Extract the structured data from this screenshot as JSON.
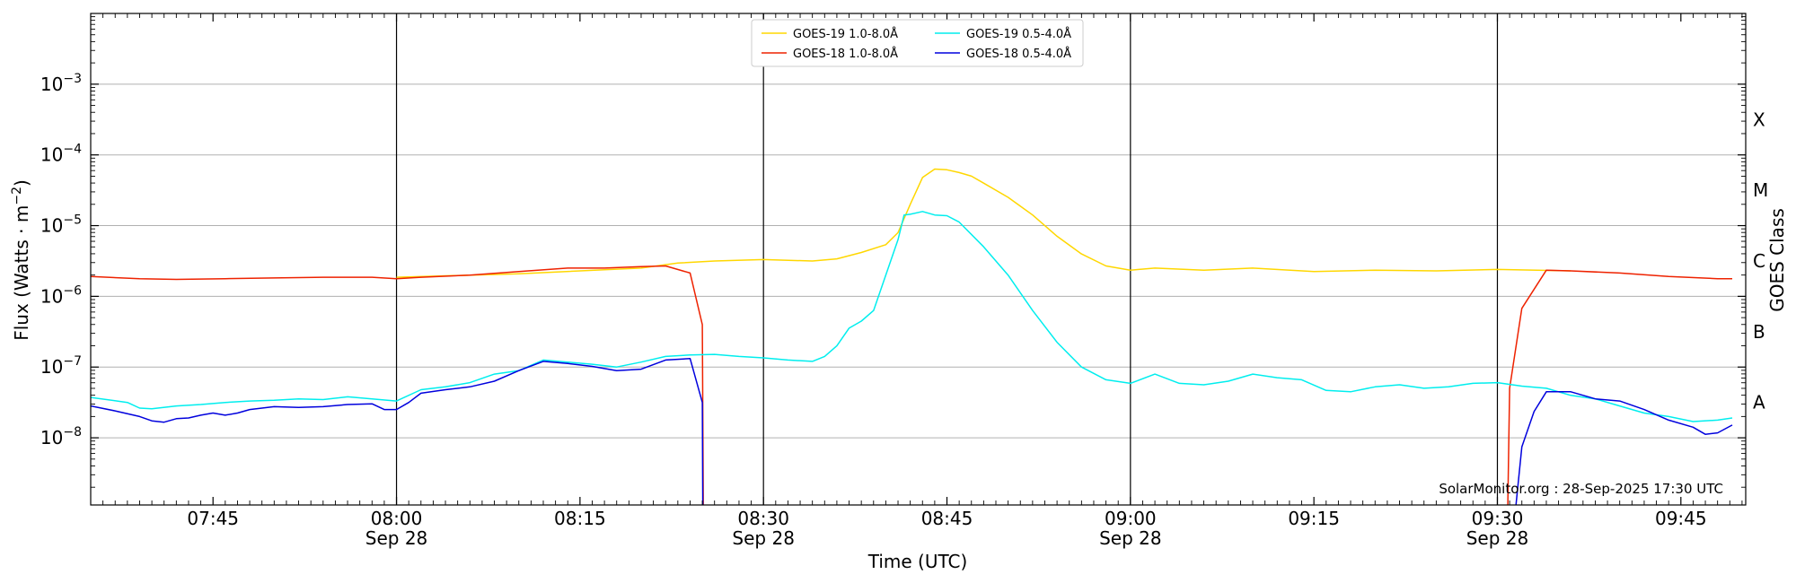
{
  "chart_data": {
    "type": "line",
    "xlabel": "Time (UTC)",
    "ylabel_main": "Flux (Watts · m",
    "ylabel_exp": "−2",
    "ylabel_close": ")",
    "y2label": "GOES Class",
    "credit": "SolarMonitor.org : 28-Sep-2025 17:30 UTC",
    "yscale": "log",
    "ylim_exp": [
      -8.95,
      -2.0
    ],
    "xlim_min": [
      455.0,
      590.3
    ],
    "x_ticks": [
      {
        "t": 465,
        "time": "07:45",
        "date": ""
      },
      {
        "t": 480,
        "time": "08:00",
        "date": "Sep 28"
      },
      {
        "t": 495,
        "time": "08:15",
        "date": ""
      },
      {
        "t": 510,
        "time": "08:30",
        "date": "Sep 28"
      },
      {
        "t": 525,
        "time": "08:45",
        "date": ""
      },
      {
        "t": 540,
        "time": "09:00",
        "date": "Sep 28"
      },
      {
        "t": 555,
        "time": "09:15",
        "date": ""
      },
      {
        "t": 570,
        "time": "09:30",
        "date": "Sep 28"
      },
      {
        "t": 585,
        "time": "09:45",
        "date": ""
      }
    ],
    "vertical_lines": [
      480,
      510,
      540,
      570
    ],
    "y_ticks": [
      {
        "exp": -8,
        "label": "10",
        "sup": "−8"
      },
      {
        "exp": -7,
        "label": "10",
        "sup": "−7"
      },
      {
        "exp": -6,
        "label": "10",
        "sup": "−6"
      },
      {
        "exp": -5,
        "label": "10",
        "sup": "−5"
      },
      {
        "exp": -4,
        "label": "10",
        "sup": "−4"
      },
      {
        "exp": -3,
        "label": "10",
        "sup": "−3"
      }
    ],
    "goes_classes": [
      {
        "label": "A",
        "exp": -7.5
      },
      {
        "label": "B",
        "exp": -6.5
      },
      {
        "label": "C",
        "exp": -5.5
      },
      {
        "label": "M",
        "exp": -4.5
      },
      {
        "label": "X",
        "exp": -3.5
      }
    ],
    "grid": true,
    "legend_position": "top-center",
    "series": [
      {
        "name": "GOES-19 1.0-8.0Å",
        "color": "#ffd700",
        "points": [
          [
            480,
            -5.73
          ],
          [
            490,
            -5.68
          ],
          [
            500,
            -5.6
          ],
          [
            503,
            -5.53
          ],
          [
            506,
            -5.5
          ],
          [
            510,
            -5.48
          ],
          [
            514,
            -5.5
          ],
          [
            516,
            -5.47
          ],
          [
            518,
            -5.38
          ],
          [
            520,
            -5.27
          ],
          [
            521,
            -5.1
          ],
          [
            522,
            -4.7
          ],
          [
            523,
            -4.32
          ],
          [
            524,
            -4.2
          ],
          [
            525,
            -4.21
          ],
          [
            526,
            -4.25
          ],
          [
            527,
            -4.3
          ],
          [
            528,
            -4.4
          ],
          [
            530,
            -4.6
          ],
          [
            532,
            -4.85
          ],
          [
            534,
            -5.15
          ],
          [
            536,
            -5.4
          ],
          [
            538,
            -5.57
          ],
          [
            540,
            -5.63
          ],
          [
            542,
            -5.6
          ],
          [
            546,
            -5.63
          ],
          [
            550,
            -5.6
          ],
          [
            555,
            -5.65
          ],
          [
            560,
            -5.63
          ],
          [
            565,
            -5.64
          ],
          [
            570,
            -5.62
          ],
          [
            576,
            -5.64
          ]
        ]
      },
      {
        "name": "GOES-18 1.0-8.0Å",
        "color": "#ee2200",
        "points": [
          [
            455,
            -5.72
          ],
          [
            459,
            -5.75
          ],
          [
            462,
            -5.76
          ],
          [
            466,
            -5.75
          ],
          [
            470,
            -5.74
          ],
          [
            474,
            -5.73
          ],
          [
            478,
            -5.73
          ],
          [
            480,
            -5.75
          ],
          [
            482,
            -5.73
          ],
          [
            486,
            -5.7
          ],
          [
            490,
            -5.65
          ],
          [
            494,
            -5.6
          ],
          [
            497,
            -5.6
          ],
          [
            500,
            -5.58
          ],
          [
            502,
            -5.57
          ],
          [
            504,
            -5.67
          ],
          [
            505,
            -6.4
          ],
          [
            505.1,
            -9.5
          ],
          [
            570.8,
            -9.5
          ],
          [
            571,
            -7.3
          ],
          [
            572,
            -6.17
          ],
          [
            574,
            -5.63
          ],
          [
            576,
            -5.64
          ],
          [
            580,
            -5.67
          ],
          [
            584,
            -5.72
          ],
          [
            588,
            -5.75
          ],
          [
            589.2,
            -5.75
          ]
        ]
      },
      {
        "name": "GOES-19 0.5-4.0Å",
        "color": "#00eeee",
        "points": [
          [
            455,
            -7.43
          ],
          [
            458,
            -7.5
          ],
          [
            459,
            -7.58
          ],
          [
            460,
            -7.59
          ],
          [
            462,
            -7.55
          ],
          [
            464,
            -7.53
          ],
          [
            466,
            -7.5
          ],
          [
            468,
            -7.48
          ],
          [
            470,
            -7.47
          ],
          [
            472,
            -7.45
          ],
          [
            474,
            -7.46
          ],
          [
            476,
            -7.42
          ],
          [
            478,
            -7.45
          ],
          [
            480,
            -7.48
          ],
          [
            482,
            -7.32
          ],
          [
            484,
            -7.28
          ],
          [
            486,
            -7.22
          ],
          [
            488,
            -7.1
          ],
          [
            490,
            -7.05
          ],
          [
            492,
            -6.9
          ],
          [
            494,
            -6.93
          ],
          [
            496,
            -6.96
          ],
          [
            498,
            -7.0
          ],
          [
            500,
            -6.93
          ],
          [
            502,
            -6.85
          ],
          [
            504,
            -6.83
          ],
          [
            506,
            -6.82
          ],
          [
            508,
            -6.85
          ],
          [
            510,
            -6.87
          ],
          [
            512,
            -6.9
          ],
          [
            514,
            -6.92
          ],
          [
            515,
            -6.85
          ],
          [
            516,
            -6.7
          ],
          [
            517,
            -6.45
          ],
          [
            518,
            -6.35
          ],
          [
            519,
            -6.2
          ],
          [
            520,
            -5.7
          ],
          [
            521,
            -5.2
          ],
          [
            521.5,
            -4.85
          ],
          [
            522,
            -4.84
          ],
          [
            523,
            -4.8
          ],
          [
            524,
            -4.85
          ],
          [
            525,
            -4.86
          ],
          [
            526,
            -4.95
          ],
          [
            528,
            -5.3
          ],
          [
            530,
            -5.7
          ],
          [
            532,
            -6.2
          ],
          [
            534,
            -6.65
          ],
          [
            536,
            -7.0
          ],
          [
            538,
            -7.18
          ],
          [
            540,
            -7.23
          ],
          [
            542,
            -7.1
          ],
          [
            544,
            -7.23
          ],
          [
            546,
            -7.25
          ],
          [
            548,
            -7.2
          ],
          [
            550,
            -7.1
          ],
          [
            552,
            -7.15
          ],
          [
            554,
            -7.18
          ],
          [
            556,
            -7.33
          ],
          [
            558,
            -7.35
          ],
          [
            560,
            -7.28
          ],
          [
            562,
            -7.25
          ],
          [
            564,
            -7.3
          ],
          [
            566,
            -7.28
          ],
          [
            568,
            -7.23
          ],
          [
            570,
            -7.22
          ],
          [
            572,
            -7.27
          ],
          [
            574,
            -7.3
          ],
          [
            576,
            -7.4
          ],
          [
            578,
            -7.45
          ],
          [
            580,
            -7.55
          ],
          [
            582,
            -7.65
          ],
          [
            584,
            -7.7
          ],
          [
            586,
            -7.77
          ],
          [
            588,
            -7.75
          ],
          [
            589.2,
            -7.72
          ]
        ]
      },
      {
        "name": "GOES-18 0.5-4.0Å",
        "color": "#0000dd",
        "points": [
          [
            455,
            -7.55
          ],
          [
            457,
            -7.62
          ],
          [
            459,
            -7.7
          ],
          [
            460,
            -7.76
          ],
          [
            461,
            -7.78
          ],
          [
            462,
            -7.73
          ],
          [
            463,
            -7.72
          ],
          [
            464,
            -7.68
          ],
          [
            465,
            -7.65
          ],
          [
            466,
            -7.68
          ],
          [
            467,
            -7.65
          ],
          [
            468,
            -7.6
          ],
          [
            469,
            -7.58
          ],
          [
            470,
            -7.56
          ],
          [
            472,
            -7.57
          ],
          [
            474,
            -7.56
          ],
          [
            476,
            -7.53
          ],
          [
            478,
            -7.52
          ],
          [
            479,
            -7.6
          ],
          [
            480,
            -7.6
          ],
          [
            481,
            -7.5
          ],
          [
            482,
            -7.37
          ],
          [
            484,
            -7.32
          ],
          [
            486,
            -7.28
          ],
          [
            488,
            -7.2
          ],
          [
            490,
            -7.05
          ],
          [
            492,
            -6.92
          ],
          [
            494,
            -6.95
          ],
          [
            496,
            -6.99
          ],
          [
            498,
            -7.05
          ],
          [
            500,
            -7.03
          ],
          [
            502,
            -6.9
          ],
          [
            504,
            -6.88
          ],
          [
            505,
            -7.5
          ],
          [
            505.05,
            -9.5
          ],
          [
            571.2,
            -9.5
          ],
          [
            572,
            -8.13
          ],
          [
            573,
            -7.63
          ],
          [
            574,
            -7.35
          ],
          [
            576,
            -7.35
          ],
          [
            578,
            -7.45
          ],
          [
            580,
            -7.48
          ],
          [
            582,
            -7.6
          ],
          [
            584,
            -7.75
          ],
          [
            586,
            -7.85
          ],
          [
            587,
            -7.95
          ],
          [
            588,
            -7.93
          ],
          [
            589.2,
            -7.82
          ]
        ]
      }
    ]
  }
}
